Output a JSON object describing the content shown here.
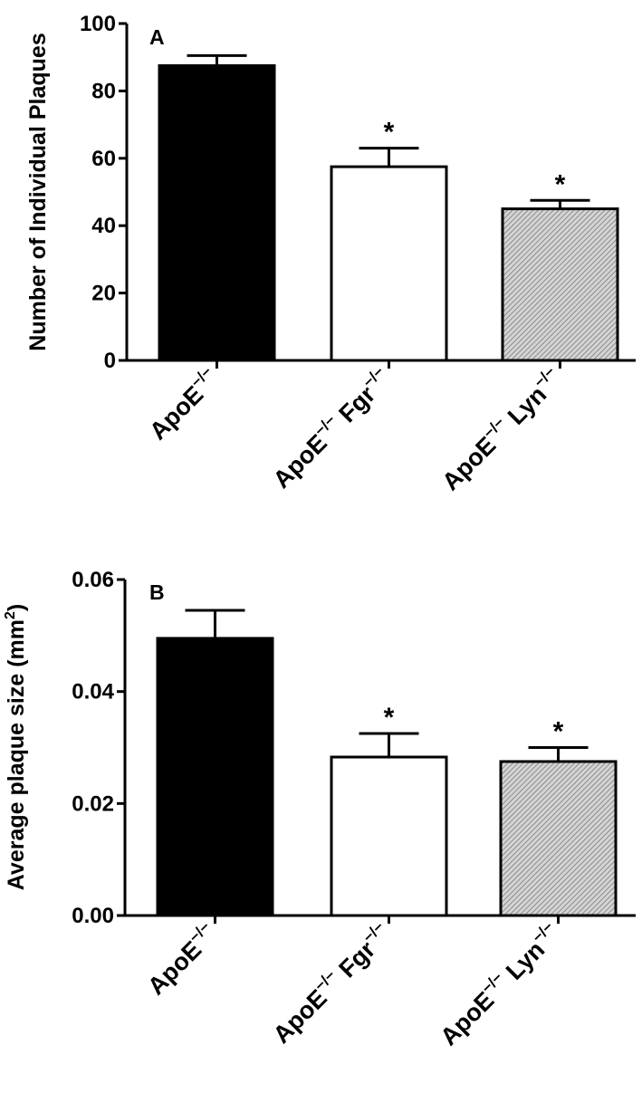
{
  "chart_data": [
    {
      "type": "bar",
      "panel_label": "A",
      "ylabel": "Number of Individual Plaques",
      "ylim": [
        0,
        100
      ],
      "yticks": [
        "0",
        "20",
        "40",
        "60",
        "80",
        "100"
      ],
      "categories": [
        {
          "base": "ApoE",
          "sup": "−/−",
          "gene": "",
          "gene_sup": ""
        },
        {
          "base": "ApoE",
          "sup": "−/−",
          "gene": "Fgr",
          "gene_sup": "−/−"
        },
        {
          "base": "ApoE",
          "sup": "−/−",
          "gene": "Lyn",
          "gene_sup": "−/−"
        }
      ],
      "values": [
        87.5,
        57.5,
        45
      ],
      "errors": [
        3,
        5.5,
        2.5
      ],
      "significance": [
        "",
        "*",
        "*"
      ],
      "bar_fills": [
        "#000000",
        "#ffffff",
        "hatch"
      ]
    },
    {
      "type": "bar",
      "panel_label": "B",
      "ylabel": "Average plaque size (mm",
      "ylabel_sup": "2",
      "ylabel_close": ")",
      "ylim": [
        0,
        0.06
      ],
      "yticks": [
        "0.00",
        "0.02",
        "0.04",
        "0.06"
      ],
      "categories": [
        {
          "base": "ApoE",
          "sup": "−/−",
          "gene": "",
          "gene_sup": ""
        },
        {
          "base": "ApoE",
          "sup": "−/−",
          "gene": "Fgr",
          "gene_sup": "−/−"
        },
        {
          "base": "ApoE",
          "sup": "−/−",
          "gene": "Lyn",
          "gene_sup": "−/−"
        }
      ],
      "values": [
        0.0495,
        0.0283,
        0.0275
      ],
      "errors": [
        0.005,
        0.0042,
        0.0025
      ],
      "significance": [
        "",
        "*",
        "*"
      ],
      "bar_fills": [
        "#000000",
        "#ffffff",
        "hatch"
      ]
    }
  ]
}
